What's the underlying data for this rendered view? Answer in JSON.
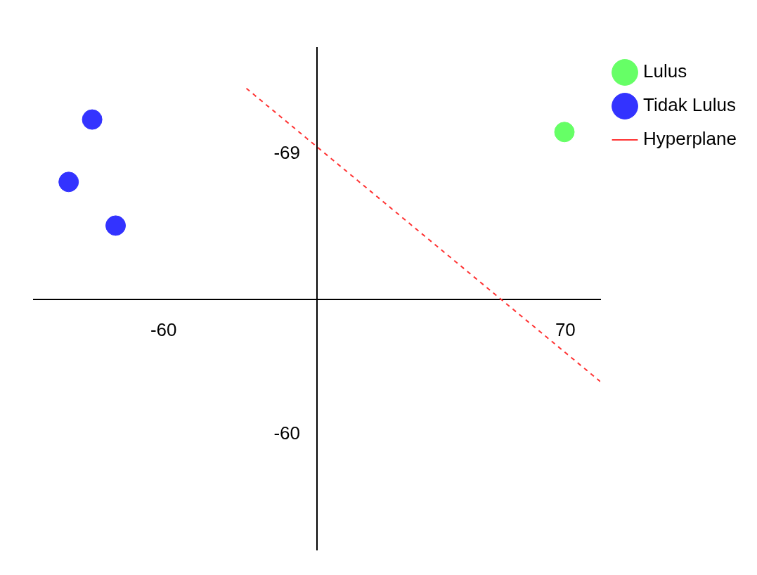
{
  "chart_data": {
    "type": "scatter",
    "series": [
      {
        "name": "Lulus",
        "color": "#66ff66",
        "x": [
          69.7
        ],
        "values": [
          -69.7
        ]
      },
      {
        "name": "Tidak Lulus",
        "color": "#3333ff",
        "x": [
          -83.1,
          -90.7,
          -75.5
        ],
        "values": [
          -70.1,
          -68.1,
          -66.7
        ]
      },
      {
        "name": "Hyperplane",
        "type": "line",
        "color": "#ff3333",
        "line_style": "dashed",
        "marker": "none",
        "x": [
          -33.2,
          81.3
        ],
        "values": [
          -71.1,
          -61.7
        ]
      }
    ],
    "xlim": [
      -102,
      81.3
    ],
    "xticks": [
      -60,
      70
    ],
    "ylim": [
      -56.3,
      -72.4
    ],
    "yticks": [
      -69,
      -60
    ],
    "marker": "circle",
    "grid": false,
    "legend": "top right"
  }
}
